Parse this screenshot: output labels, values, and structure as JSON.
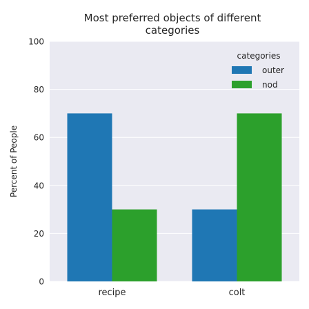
{
  "chart_data": {
    "type": "bar",
    "title": "Most preferred objects of different categories",
    "title_lines": [
      "Most preferred objects of different",
      "categories"
    ],
    "xlabel": "",
    "ylabel": "Percent of People",
    "categories": [
      "recipe",
      "colt"
    ],
    "series": [
      {
        "name": "outer",
        "color": "#1f77b4",
        "values": [
          70,
          30
        ]
      },
      {
        "name": "nod",
        "color": "#2ca02c",
        "values": [
          30,
          70
        ]
      }
    ],
    "ylim": [
      0,
      100
    ],
    "yticks": [
      0,
      20,
      40,
      60,
      80,
      100
    ],
    "grid": true,
    "legend": {
      "title": "categories",
      "placement": "top-right"
    },
    "background": "#eaeaf2"
  }
}
